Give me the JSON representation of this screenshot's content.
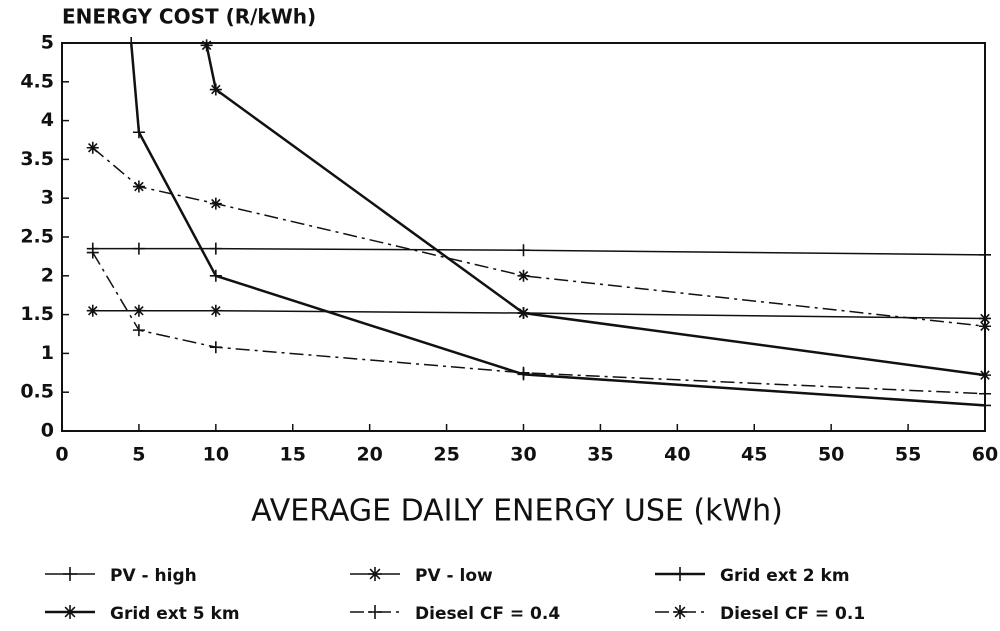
{
  "chart_data": {
    "type": "line",
    "title": "ENERGY COST (R/kWh)",
    "x_label": "AVERAGE DAILY ENERGY USE (kWh)",
    "xlim": [
      0,
      60
    ],
    "xticks": [
      0,
      5,
      10,
      15,
      20,
      25,
      30,
      35,
      40,
      45,
      50,
      55,
      60
    ],
    "ylim": [
      0,
      5
    ],
    "yticks": [
      0,
      0.5,
      1,
      1.5,
      2,
      2.5,
      3,
      3.5,
      4,
      4.5,
      5
    ],
    "series": [
      {
        "name": "PV - high",
        "color": "#111111",
        "style": "solid",
        "marker": "+",
        "width": 1.5,
        "x": [
          2,
          5,
          10,
          30,
          60
        ],
        "values": [
          2.35,
          2.35,
          2.35,
          2.33,
          2.27
        ]
      },
      {
        "name": "PV - low",
        "color": "#111111",
        "style": "solid",
        "marker": "*",
        "width": 1.5,
        "x": [
          2,
          5,
          10,
          30,
          60
        ],
        "values": [
          1.55,
          1.55,
          1.55,
          1.52,
          1.45
        ]
      },
      {
        "name": "Grid ext 2 km",
        "color": "#111111",
        "style": "solid",
        "marker": "+",
        "width": 2.5,
        "x": [
          4.5,
          5,
          10,
          30,
          60
        ],
        "values": [
          5,
          3.85,
          2,
          0.73,
          0.33
        ]
      },
      {
        "name": "Grid ext 5 km",
        "color": "#111111",
        "style": "solid",
        "marker": "*",
        "width": 2.5,
        "x": [
          9.4,
          10,
          30,
          60
        ],
        "values": [
          4.97,
          4.4,
          1.52,
          0.72
        ]
      },
      {
        "name": "Diesel CF = 0.4",
        "color": "#111111",
        "style": "dashdot",
        "marker": "+",
        "width": 1.5,
        "x": [
          2,
          5,
          10,
          30,
          60
        ],
        "values": [
          2.3,
          1.3,
          1.08,
          0.75,
          0.48
        ]
      },
      {
        "name": "Diesel CF = 0.1",
        "color": "#111111",
        "style": "dashdot",
        "marker": "*",
        "width": 1.5,
        "x": [
          2,
          5,
          10,
          30,
          60
        ],
        "values": [
          3.65,
          3.15,
          2.93,
          2.0,
          1.35
        ]
      }
    ]
  }
}
